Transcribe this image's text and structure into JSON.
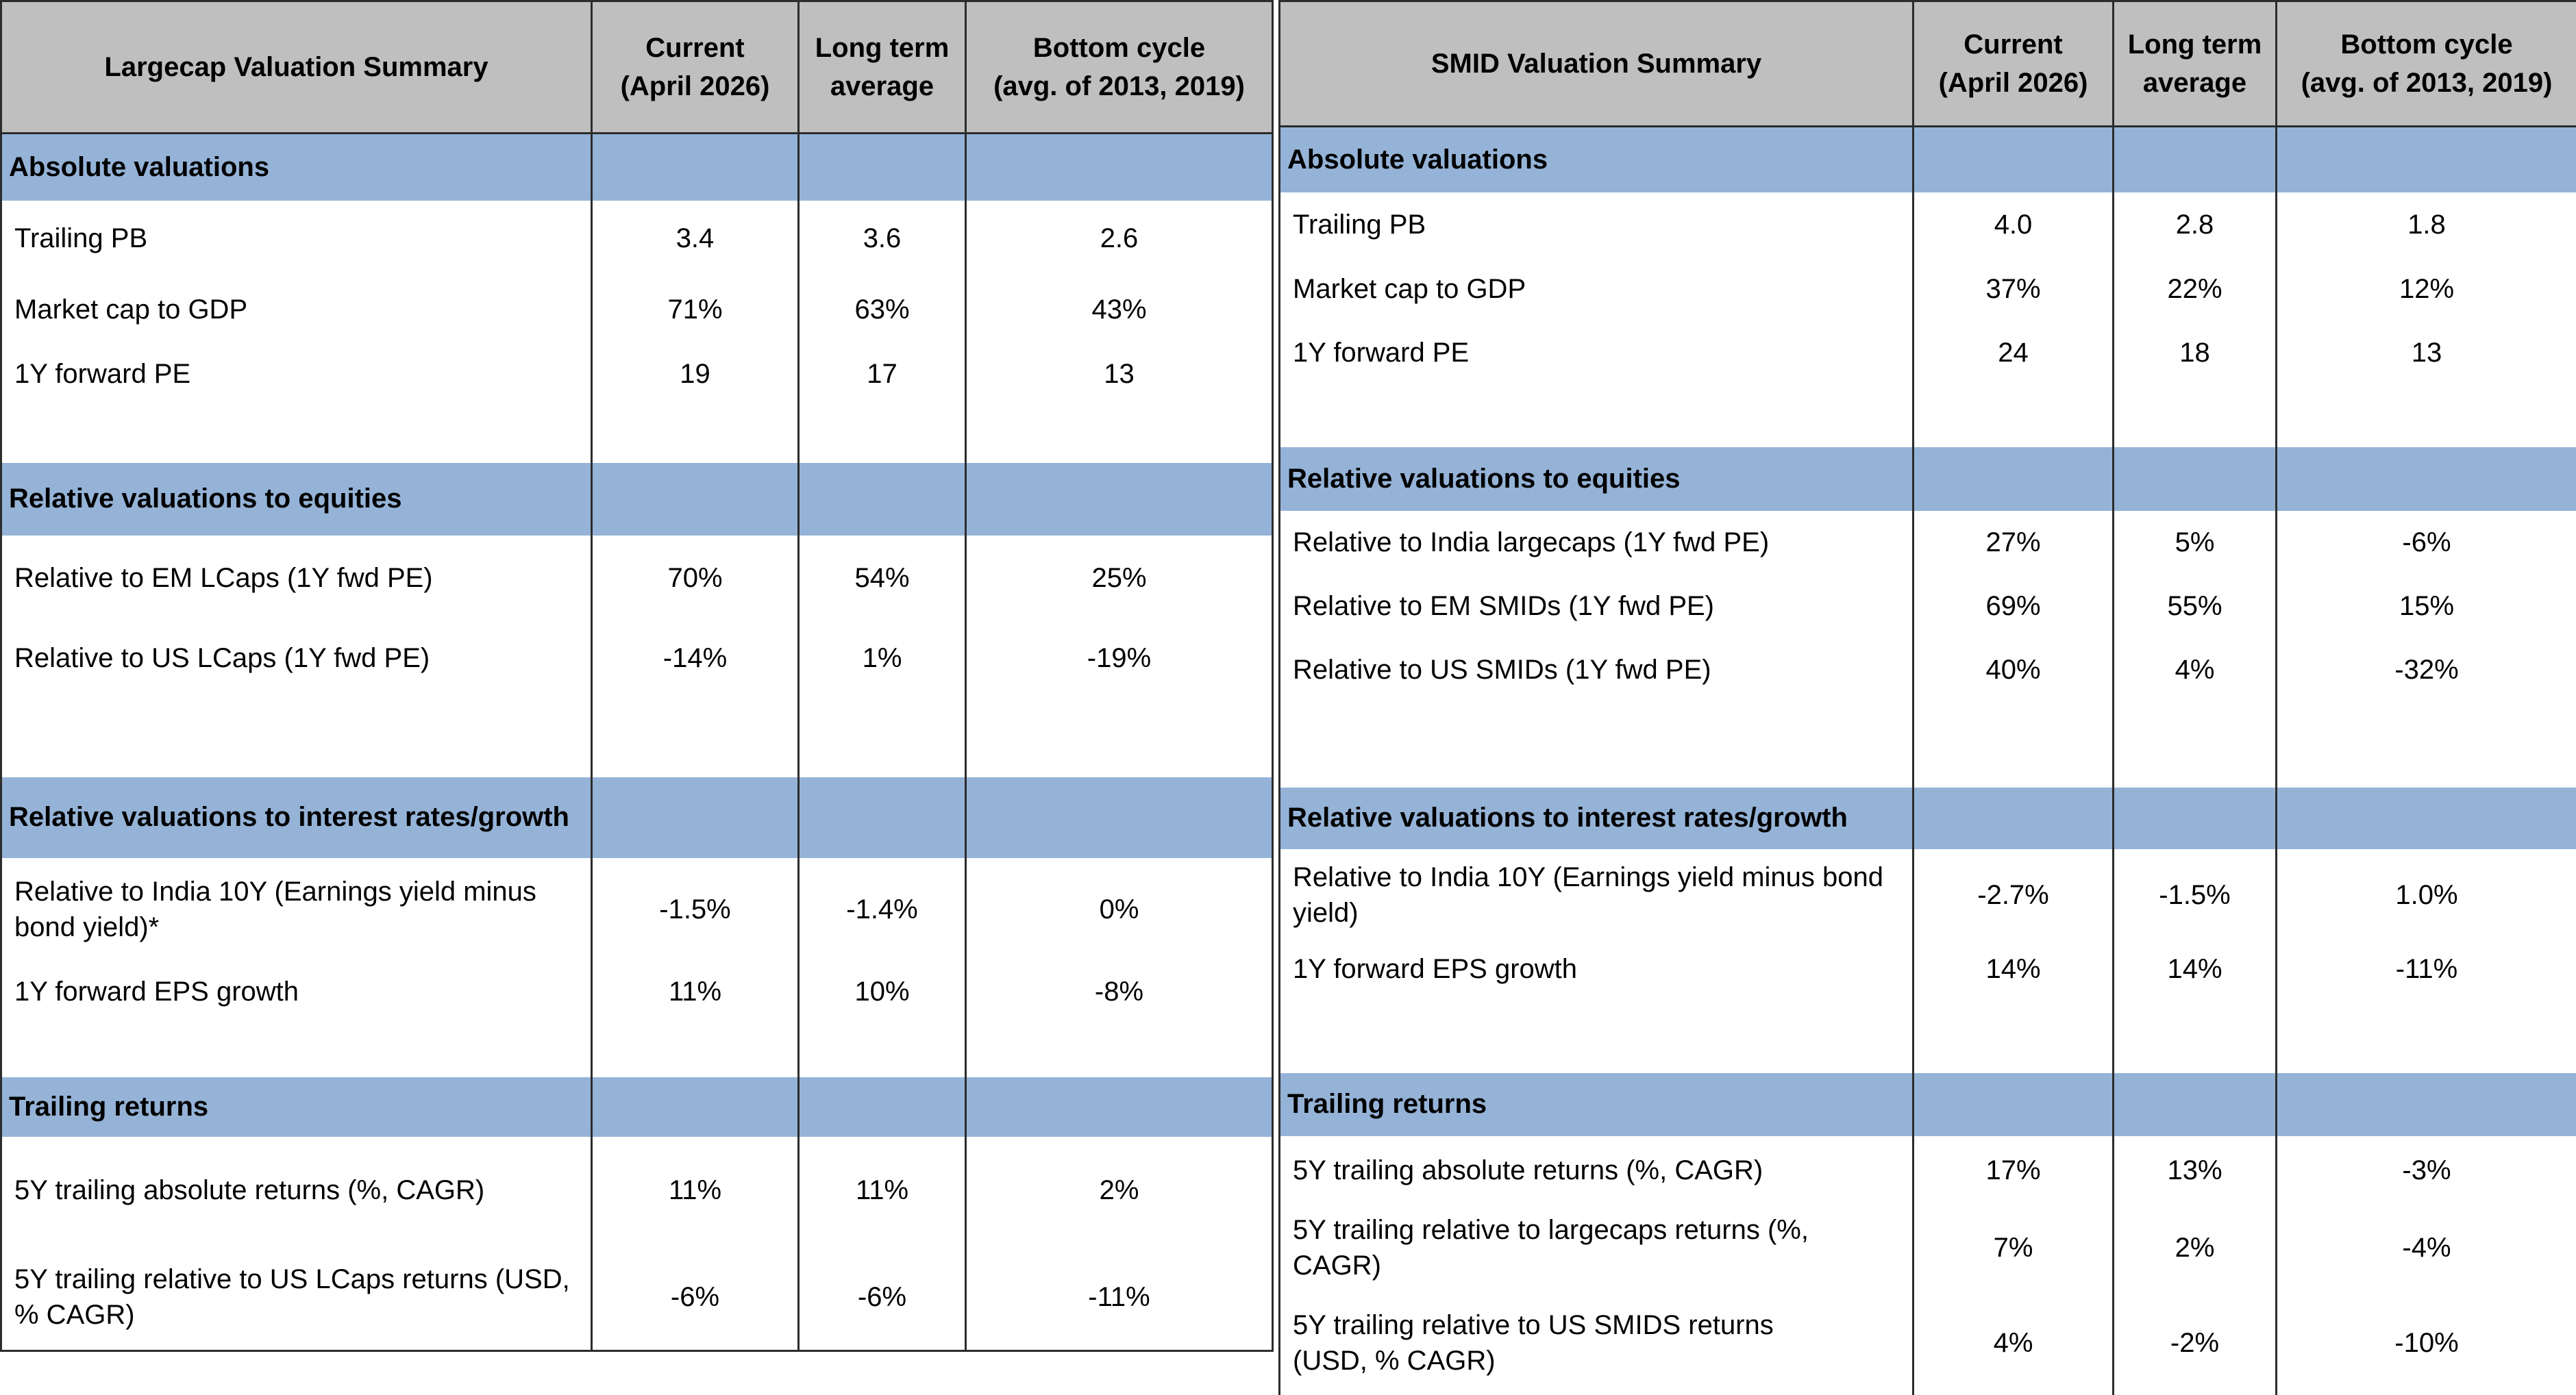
{
  "columns": {
    "current": "Current\n(April 2026)",
    "long_term": "Long term\naverage",
    "bottom": "Bottom cycle\n(avg. of 2013, 2019)"
  },
  "largecap": {
    "title": "Largecap Valuation Summary",
    "sections": [
      {
        "name": "Absolute valuations",
        "rows": [
          {
            "label": "Trailing PB",
            "current": "3.4",
            "long_term": "3.6",
            "bottom": "2.6"
          },
          {
            "label": "Market cap to GDP",
            "current": "71%",
            "long_term": "63%",
            "bottom": "43%"
          },
          {
            "label": "1Y forward PE",
            "current": "19",
            "long_term": "17",
            "bottom": "13"
          }
        ]
      },
      {
        "name": "Relative valuations to equities",
        "rows": [
          {
            "label": "Relative to EM LCaps (1Y fwd PE)",
            "current": "70%",
            "long_term": "54%",
            "bottom": "25%"
          },
          {
            "label": "Relative to US LCaps (1Y fwd PE)",
            "current": "-14%",
            "long_term": "1%",
            "bottom": "-19%"
          }
        ]
      },
      {
        "name": "Relative valuations to interest rates/growth",
        "rows": [
          {
            "label": "Relative to India 10Y (Earnings yield minus bond yield)*",
            "current": "-1.5%",
            "long_term": "-1.4%",
            "bottom": "0%"
          },
          {
            "label": "1Y forward EPS growth",
            "current": "11%",
            "long_term": "10%",
            "bottom": "-8%"
          }
        ]
      },
      {
        "name": "Trailing returns",
        "rows": [
          {
            "label": "5Y trailing absolute returns (%, CAGR)",
            "current": "11%",
            "long_term": "11%",
            "bottom": "2%"
          },
          {
            "label": "5Y trailing relative to US LCaps returns (USD, % CAGR)",
            "current": "-6%",
            "long_term": "-6%",
            "bottom": "-11%"
          }
        ]
      }
    ]
  },
  "smid": {
    "title": "SMID Valuation Summary",
    "sections": [
      {
        "name": "Absolute valuations",
        "rows": [
          {
            "label": "Trailing PB",
            "current": "4.0",
            "long_term": "2.8",
            "bottom": "1.8"
          },
          {
            "label": "Market cap to GDP",
            "current": "37%",
            "long_term": "22%",
            "bottom": "12%"
          },
          {
            "label": "1Y forward PE",
            "current": "24",
            "long_term": "18",
            "bottom": "13"
          }
        ]
      },
      {
        "name": "Relative valuations to equities",
        "rows": [
          {
            "label": "Relative to India largecaps (1Y fwd PE)",
            "current": "27%",
            "long_term": "5%",
            "bottom": "-6%"
          },
          {
            "label": "Relative to EM SMIDs (1Y fwd PE)",
            "current": "69%",
            "long_term": "55%",
            "bottom": "15%"
          },
          {
            "label": "Relative to US SMIDs (1Y fwd PE)",
            "current": "40%",
            "long_term": "4%",
            "bottom": "-32%"
          }
        ]
      },
      {
        "name": "Relative valuations to interest rates/growth",
        "rows": [
          {
            "label": "Relative to India 10Y (Earnings yield minus bond yield)",
            "current": "-2.7%",
            "long_term": "-1.5%",
            "bottom": "1.0%"
          },
          {
            "label": "1Y forward EPS growth",
            "current": "14%",
            "long_term": "14%",
            "bottom": "-11%"
          }
        ]
      },
      {
        "name": "Trailing returns",
        "rows": [
          {
            "label": "5Y trailing absolute returns (%, CAGR)",
            "current": "17%",
            "long_term": "13%",
            "bottom": "-3%"
          },
          {
            "label": "5Y trailing relative to largecaps returns (%, CAGR)",
            "current": "7%",
            "long_term": "2%",
            "bottom": "-4%"
          },
          {
            "label": "5Y trailing relative to US SMIDS returns\n(USD, % CAGR)",
            "current": "4%",
            "long_term": "-2%",
            "bottom": "-10%"
          }
        ]
      }
    ]
  }
}
